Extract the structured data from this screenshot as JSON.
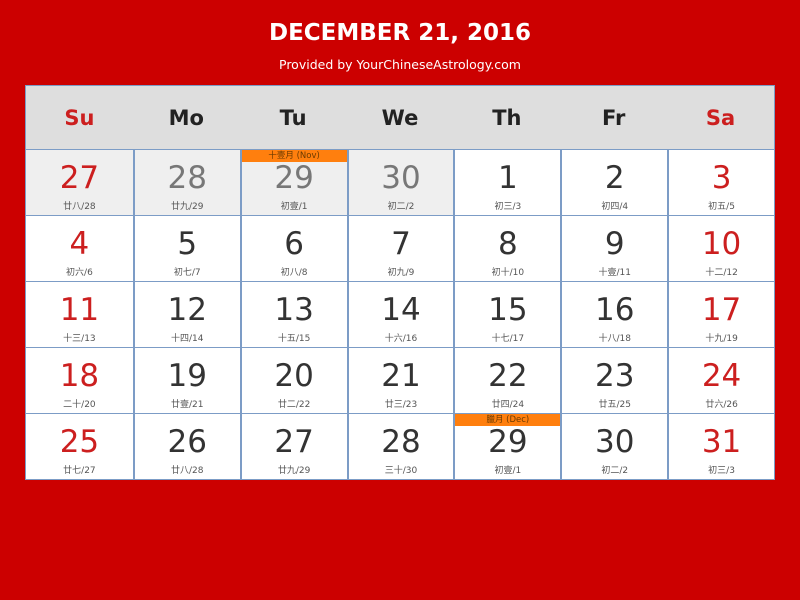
{
  "title": "DECEMBER 21, 2016",
  "subtitle": "Provided by YourChineseAstrology.com",
  "weekdays": [
    "Su",
    "Mo",
    "Tu",
    "We",
    "Th",
    "Fr",
    "Sa"
  ],
  "colors": {
    "background": "#cc0000",
    "weekend": "#cc1f1f",
    "month_tag": "#ff7f0e"
  },
  "weeks": [
    [
      {
        "d": "27",
        "l": "廿八/28",
        "o": true
      },
      {
        "d": "28",
        "l": "廿九/29",
        "o": true
      },
      {
        "d": "29",
        "l": "初壹/1",
        "o": true,
        "tag": "十壹月 (Nov)"
      },
      {
        "d": "30",
        "l": "初二/2",
        "o": true
      },
      {
        "d": "1",
        "l": "初三/3"
      },
      {
        "d": "2",
        "l": "初四/4"
      },
      {
        "d": "3",
        "l": "初五/5"
      }
    ],
    [
      {
        "d": "4",
        "l": "初六/6"
      },
      {
        "d": "5",
        "l": "初七/7"
      },
      {
        "d": "6",
        "l": "初八/8"
      },
      {
        "d": "7",
        "l": "初九/9"
      },
      {
        "d": "8",
        "l": "初十/10"
      },
      {
        "d": "9",
        "l": "十壹/11"
      },
      {
        "d": "10",
        "l": "十二/12"
      }
    ],
    [
      {
        "d": "11",
        "l": "十三/13"
      },
      {
        "d": "12",
        "l": "十四/14"
      },
      {
        "d": "13",
        "l": "十五/15"
      },
      {
        "d": "14",
        "l": "十六/16"
      },
      {
        "d": "15",
        "l": "十七/17"
      },
      {
        "d": "16",
        "l": "十八/18"
      },
      {
        "d": "17",
        "l": "十九/19"
      }
    ],
    [
      {
        "d": "18",
        "l": "二十/20"
      },
      {
        "d": "19",
        "l": "廿壹/21"
      },
      {
        "d": "20",
        "l": "廿二/22"
      },
      {
        "d": "21",
        "l": "廿三/23"
      },
      {
        "d": "22",
        "l": "廿四/24"
      },
      {
        "d": "23",
        "l": "廿五/25"
      },
      {
        "d": "24",
        "l": "廿六/26"
      }
    ],
    [
      {
        "d": "25",
        "l": "廿七/27"
      },
      {
        "d": "26",
        "l": "廿八/28"
      },
      {
        "d": "27",
        "l": "廿九/29"
      },
      {
        "d": "28",
        "l": "三十/30"
      },
      {
        "d": "29",
        "l": "初壹/1",
        "tag": "臘月 (Dec)"
      },
      {
        "d": "30",
        "l": "初二/2"
      },
      {
        "d": "31",
        "l": "初三/3"
      }
    ]
  ]
}
